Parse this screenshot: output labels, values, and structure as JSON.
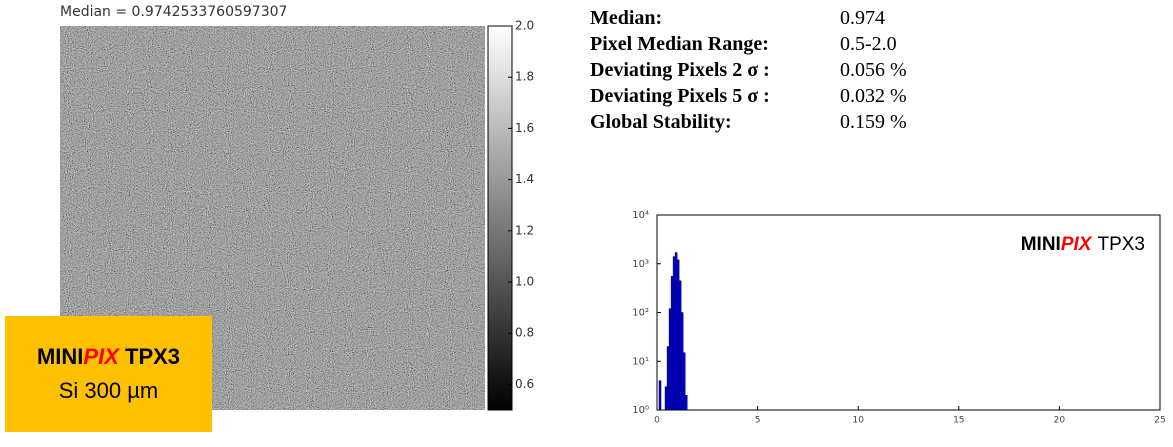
{
  "chart_data": [
    {
      "type": "image",
      "title": "Median = 0.9742533760597307",
      "clim": [
        0.5,
        2.0
      ],
      "cticks": [
        0.6,
        0.8,
        {
          "value": 1,
          "label": "1.0"
        },
        1.2,
        1.4,
        1.6,
        1.8,
        {
          "value": 2,
          "label": "2.0"
        }
      ]
    },
    {
      "type": "histogram",
      "log_y": true,
      "bins": [
        0.1,
        0.2,
        0.3,
        0.4,
        0.5,
        0.6,
        0.7,
        0.8,
        0.9,
        1.0,
        1.1,
        1.2,
        1.3,
        1.4,
        1.5
      ],
      "values": [
        4,
        0,
        0,
        3,
        20,
        120,
        550,
        1400,
        1700,
        1200,
        450,
        100,
        15,
        2
      ],
      "color": "#0000ff",
      "xlim": [
        0,
        25
      ],
      "xticks": [
        0,
        5,
        10,
        15,
        20,
        25
      ],
      "ylim": [
        1,
        10000
      ],
      "yticks": [
        {
          "value": 1,
          "label": "10⁰"
        },
        {
          "value": 10,
          "label": "10¹"
        },
        {
          "value": 100,
          "label": "10²"
        },
        {
          "value": 1000,
          "label": "10³"
        },
        {
          "value": 10000,
          "label": "10⁴"
        }
      ],
      "annotation": [
        "MINI",
        "PIX",
        "TPX3"
      ]
    }
  ],
  "stats": [
    [
      "Median:",
      "0.974"
    ],
    [
      "Pixel Median Range:",
      "0.5-2.0"
    ],
    [
      "Deviating Pixels 2 σ :",
      "0.056 %"
    ],
    [
      "Deviating Pixels 5 σ :",
      "0.032 %"
    ],
    [
      "Global Stability:",
      "0.159 %"
    ]
  ],
  "badge": {
    "line1": [
      "MINI",
      "PIX",
      "TPX3"
    ],
    "line2": "Si 300 µm"
  }
}
